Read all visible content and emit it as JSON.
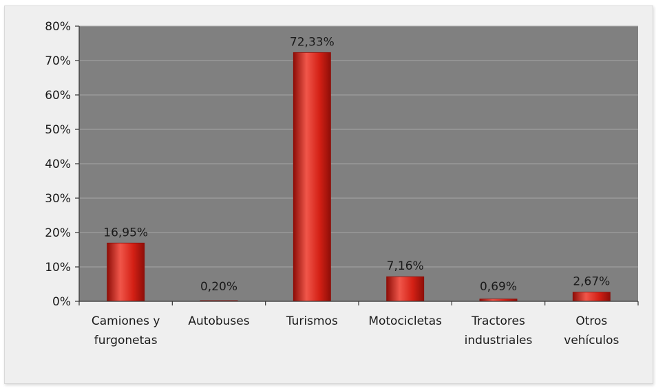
{
  "chart_data": {
    "type": "bar",
    "categories": [
      [
        "Camiones y",
        "furgonetas"
      ],
      [
        "Autobuses"
      ],
      [
        "Turismos"
      ],
      [
        "Motocicletas"
      ],
      [
        "Tractores",
        "industriales"
      ],
      [
        "Otros",
        "vehículos"
      ]
    ],
    "values": [
      16.95,
      0.2,
      72.33,
      7.16,
      0.69,
      2.67
    ],
    "data_labels": [
      "16,95%",
      "0,20%",
      "72,33%",
      "7,16%",
      "0,69%",
      "2,67%"
    ],
    "y_ticks": [
      0,
      10,
      20,
      30,
      40,
      50,
      60,
      70,
      80
    ],
    "y_tick_labels": [
      "0%",
      "10%",
      "20%",
      "30%",
      "40%",
      "50%",
      "60%",
      "70%",
      "80%"
    ],
    "ylim": [
      0,
      80
    ],
    "grid": true,
    "colors": {
      "plot_background": "#808080",
      "gridline": "#a6a6a6",
      "bar_fill": "#d42015",
      "bar_dark": "#8e0e08",
      "bar_light": "#f0564a",
      "axis": "#333333"
    }
  }
}
